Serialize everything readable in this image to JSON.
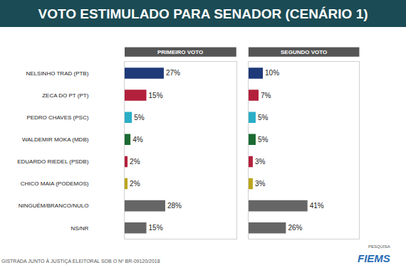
{
  "title": "VOTO ESTIMULADO PARA SENADOR (CENÁRIO 1)",
  "footer": "GISTRADA JUNTO À JUSTIÇA ELEITORAL SOB O Nº BR-09120/2018",
  "source_label": "PESQUISA",
  "source": "FIEMS",
  "chart_data": [
    {
      "type": "bar",
      "title": "PRIMEIRO VOTO",
      "orientation": "horizontal",
      "categories": [
        "NELSINHO TRAD (PTB)",
        "ZECA DO PT (PT)",
        "PEDRO CHAVES (PSC)",
        "WALDEMIR MOKA (MDB)",
        "EDUARDO RIEDEL (PSDB)",
        "CHICO MAIA (PODEMOS)",
        "NINGUÉM/BRANCO/NULO",
        "NS/NR"
      ],
      "values": [
        27,
        15,
        5,
        4,
        2,
        2,
        28,
        15
      ],
      "value_labels": [
        "27%",
        "15%",
        "5%",
        "4%",
        "2%",
        "2%",
        "28%",
        "15%"
      ],
      "colors": [
        "#1e3a78",
        "#b3203c",
        "#2aaec6",
        "#1c6b33",
        "#b3203c",
        "#bba51c",
        "#666666",
        "#666666"
      ],
      "xlim": [
        0,
        77
      ],
      "data_labels": true,
      "tick_labels": "y"
    },
    {
      "type": "bar",
      "title": "SEGUNDO VOTO",
      "orientation": "horizontal",
      "categories": [
        "NELSINHO TRAD (PTB)",
        "ZECA DO PT (PT)",
        "PEDRO CHAVES (PSC)",
        "WALDEMIR MOKA (MDB)",
        "EDUARDO RIEDEL (PSDB)",
        "CHICO MAIA (PODEMOS)",
        "NINGUÉM/BRANCO/NULO",
        "NS/NR"
      ],
      "values": [
        10,
        7,
        5,
        5,
        3,
        3,
        41,
        26
      ],
      "value_labels": [
        "10%",
        "7%",
        "5%",
        "5%",
        "3%",
        "3%",
        "41%",
        "26%"
      ],
      "colors": [
        "#1e3a78",
        "#b3203c",
        "#2aaec6",
        "#1c6b33",
        "#b3203c",
        "#bba51c",
        "#666666",
        "#666666"
      ],
      "xlim": [
        0,
        77
      ],
      "data_labels": true,
      "tick_labels": false
    }
  ]
}
